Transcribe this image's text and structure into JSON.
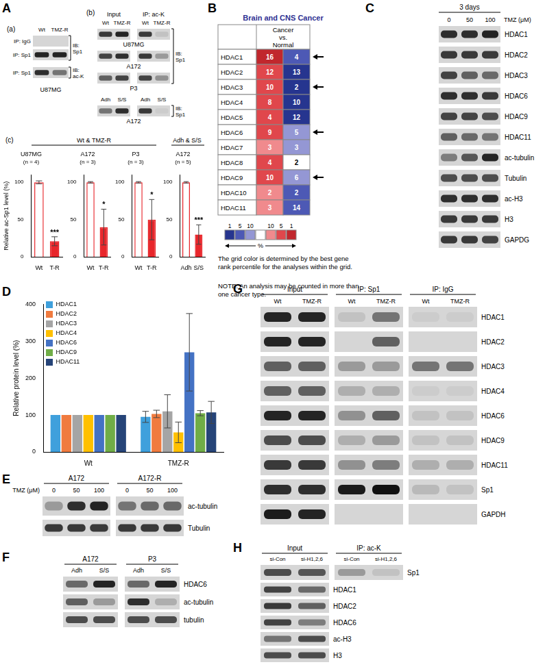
{
  "panels": {
    "A": {
      "label": "A",
      "a": {
        "label": "(a)",
        "columns": [
          "Wt",
          "TMZ-R"
        ],
        "blots": [
          {
            "rows": [
              {
                "label": "IP: IgG",
                "bands": [
                  0,
                  0
                ]
              },
              {
                "label": "IP: Sp1",
                "bands": [
                  0.9,
                  0.9
                ]
              }
            ],
            "ib": "IB:",
            "target": "Sp1"
          },
          {
            "rows": [
              {
                "label": "IP: Sp1",
                "bands": [
                  0.85,
                  0.5
                ]
              }
            ],
            "ib": "IB:",
            "target": "ac-K"
          }
        ],
        "cell_line": "U87MG"
      },
      "b": {
        "label": "(b)",
        "groups": [
          "Input",
          "IP: ac-K"
        ],
        "blots": [
          {
            "columns": [
              "Wt",
              "TMZ-R",
              "Wt",
              "TMZ-R"
            ],
            "rows": [
              {
                "label": "U87MG",
                "bands": [
                  0.8,
                  0.9,
                  0.8,
                  0.1
                ]
              },
              {
                "label": "A172",
                "bands": [
                  0.75,
                  0.85,
                  0.8,
                  0.3
                ]
              },
              {
                "label": "P3",
                "bands": [
                  0.6,
                  0.75,
                  0.75,
                  0.35
                ]
              }
            ],
            "ib": "IB:",
            "target": "Sp1"
          },
          {
            "columns": [
              "Adh",
              "S/S",
              "Adh",
              "S/S"
            ],
            "rows": [
              {
                "label": "A172",
                "bands": [
                  0.5,
                  0.85,
                  0.8,
                  0.05
                ]
              }
            ],
            "ib": "IB:",
            "target": "Sp1"
          }
        ]
      },
      "c": {
        "label": "(c)",
        "group_titles": [
          "Wt & TMZ-R",
          "Adh & S/S"
        ]
      }
    },
    "B": {
      "label": "B",
      "title": "Brain and CNS Cancer",
      "header": [
        "Cancer",
        "vs.",
        "Normal"
      ],
      "rows": [
        {
          "gene": "HDAC1",
          "cancer": {
            "value": 16,
            "color": "#c1272d"
          },
          "normal": {
            "value": 4,
            "color": "#4d59b5"
          },
          "arrow": true
        },
        {
          "gene": "HDAC2",
          "cancer": {
            "value": 12,
            "color": "#e0474c"
          },
          "normal": {
            "value": 13,
            "color": "#26358f"
          },
          "arrow": false
        },
        {
          "gene": "HDAC3",
          "cancer": {
            "value": 10,
            "color": "#e0474c"
          },
          "normal": {
            "value": 2,
            "color": "#26358f"
          },
          "arrow": true
        },
        {
          "gene": "HDAC4",
          "cancer": {
            "value": 8,
            "color": "#e0474c"
          },
          "normal": {
            "value": 10,
            "color": "#26358f"
          },
          "arrow": false
        },
        {
          "gene": "HDAC5",
          "cancer": {
            "value": 4,
            "color": "#e0474c"
          },
          "normal": {
            "value": 12,
            "color": "#26358f"
          },
          "arrow": false
        },
        {
          "gene": "HDAC6",
          "cancer": {
            "value": 9,
            "color": "#e0474c"
          },
          "normal": {
            "value": 5,
            "color": "#9497d4"
          },
          "arrow": true
        },
        {
          "gene": "HDAC7",
          "cancer": {
            "value": 3,
            "color": "#f08a8d"
          },
          "normal": {
            "value": 3,
            "color": "#9497d4"
          },
          "arrow": false
        },
        {
          "gene": "HDAC8",
          "cancer": {
            "value": 4,
            "color": "#e0474c"
          },
          "normal": {
            "value": 2,
            "color": "#ffffff"
          },
          "arrow": false
        },
        {
          "gene": "HDAC9",
          "cancer": {
            "value": 10,
            "color": "#e0474c"
          },
          "normal": {
            "value": 6,
            "color": "#9497d4"
          },
          "arrow": true
        },
        {
          "gene": "HDAC10",
          "cancer": {
            "value": 2,
            "color": "#f08a8d"
          },
          "normal": {
            "value": 2,
            "color": "#4d59b5"
          },
          "arrow": false
        },
        {
          "gene": "HDAC11",
          "cancer": {
            "value": 3,
            "color": "#f08a8d"
          },
          "normal": {
            "value": 14,
            "color": "#4d59b5"
          },
          "arrow": false
        }
      ],
      "color_scale": {
        "blue": [
          {
            "label": 1,
            "color": "#26358f"
          },
          {
            "label": 5,
            "color": "#4d59b5"
          },
          {
            "label": 10,
            "color": "#9497d4"
          }
        ],
        "neutral": "#ffffff",
        "red": [
          {
            "label": 10,
            "color": "#f08a8d"
          },
          {
            "label": 5,
            "color": "#e0474c"
          },
          {
            "label": 1,
            "color": "#c1272d"
          }
        ],
        "unit": "%"
      },
      "notes": [
        "The grid color is determined by the best gene rank percentile for the analyses within the grid.",
        "NOTE: An analysis may be counted in more than one cancer type."
      ]
    },
    "C": {
      "label": "C",
      "time": "3 days",
      "treatment": "TMZ (μM)",
      "doses": [
        0,
        50,
        100
      ],
      "rows": [
        {
          "label": "HDAC1",
          "bands": [
            0.85,
            0.85,
            0.9
          ]
        },
        {
          "label": "HDAC2",
          "bands": [
            0.8,
            0.8,
            0.8
          ]
        },
        {
          "label": "HDAC3",
          "bands": [
            0.75,
            0.6,
            0.55
          ]
        },
        {
          "label": "HDAC6",
          "bands": [
            0.85,
            0.85,
            0.8
          ]
        },
        {
          "label": "HDAC9",
          "bands": [
            0.75,
            0.75,
            0.7
          ]
        },
        {
          "label": "HDAC11",
          "bands": [
            0.6,
            0.55,
            0.5
          ]
        },
        {
          "label": "ac-tubulin",
          "bands": [
            0.45,
            0.65,
            0.9
          ]
        },
        {
          "label": "Tubulin",
          "bands": [
            0.7,
            0.7,
            0.7
          ]
        },
        {
          "label": "ac-H3",
          "bands": [
            0.85,
            0.85,
            0.85
          ]
        },
        {
          "label": "H3",
          "bands": [
            0.8,
            0.8,
            0.8
          ]
        },
        {
          "label": "GAPDG",
          "bands": [
            0.8,
            0.8,
            0.75
          ]
        }
      ]
    },
    "D": {
      "label": "D"
    },
    "E": {
      "label": "E",
      "groups": [
        "A172",
        "A172-R"
      ],
      "treatment": "TMZ (μM)",
      "doses": [
        0,
        50,
        100,
        0,
        50,
        100
      ],
      "rows": [
        {
          "label": "ac-tubulin",
          "bands": [
            0.3,
            0.85,
            0.9,
            0.5,
            0.55,
            0.55
          ]
        },
        {
          "label": "Tubulin",
          "bands": [
            0.8,
            0.8,
            0.8,
            0.8,
            0.8,
            0.8
          ]
        }
      ]
    },
    "F": {
      "label": "F",
      "groups": [
        "A172",
        "P3"
      ],
      "columns": [
        "Adh",
        "S/S",
        "Adh",
        "S/S"
      ],
      "rows": [
        {
          "label": "HDAC6",
          "bands": [
            0.55,
            0.9,
            0.55,
            0.9
          ]
        },
        {
          "label": "ac-tubulin",
          "bands": [
            0.6,
            0.3,
            0.85,
            0.2
          ]
        },
        {
          "label": "tubulin",
          "bands": [
            0.7,
            0.7,
            0.7,
            0.7
          ]
        }
      ]
    },
    "G": {
      "label": "G",
      "groups": [
        "Input",
        "IP: Sp1",
        "IP: IgG"
      ],
      "columns": [
        "Wt",
        "TMZ-R",
        "Wt",
        "TMZ-R",
        "Wt",
        "TMZ-R"
      ],
      "rows": [
        {
          "label": "HDAC1",
          "bands": [
            0.9,
            0.9,
            0.1,
            0.5,
            0.05,
            0.05
          ]
        },
        {
          "label": "HDAC2",
          "bands": [
            0.9,
            0.9,
            0,
            0.6,
            0,
            0
          ]
        },
        {
          "label": "HDAC3",
          "bands": [
            0.6,
            0.6,
            0.3,
            0.3,
            0.5,
            0.5
          ]
        },
        {
          "label": "HDAC4",
          "bands": [
            0.6,
            0.6,
            0.2,
            0.2,
            0.05,
            0.05
          ]
        },
        {
          "label": "HDAC6",
          "bands": [
            0.9,
            0.9,
            0.35,
            0.6,
            0.1,
            0.1
          ]
        },
        {
          "label": "HDAC9",
          "bands": [
            0.7,
            0.7,
            0.2,
            0.3,
            0.1,
            0.1
          ]
        },
        {
          "label": "HDAC11",
          "bands": [
            0.8,
            0.8,
            0.35,
            0.45,
            0.2,
            0.2
          ]
        },
        {
          "label": "Sp1",
          "bands": [
            0.85,
            0.85,
            0.95,
            1,
            0.15,
            0.1
          ]
        },
        {
          "label": "GAPDH",
          "bands": [
            0.95,
            0.9,
            0,
            0,
            0,
            0
          ]
        }
      ]
    },
    "H": {
      "label": "H",
      "groups": [
        "Input",
        "IP: ac-K"
      ],
      "columns": [
        "si-Con",
        "si-H1,2,6",
        "si-Con",
        "si-H1,2,6"
      ],
      "rows": [
        {
          "label": "Sp1",
          "bands": [
            0.7,
            0.65,
            0.3,
            0.1
          ]
        },
        {
          "label": "HDAC1",
          "bands": [
            0.75,
            0.55
          ]
        },
        {
          "label": "HDAC2",
          "bands": [
            0.8,
            0.6
          ]
        },
        {
          "label": "HDAC6",
          "bands": [
            0.75,
            0.45
          ]
        },
        {
          "label": "ac-H3",
          "bands": [
            0.5,
            0.7
          ]
        },
        {
          "label": "H3",
          "bands": [
            0.7,
            0.7
          ]
        }
      ]
    }
  },
  "chart_data": [
    {
      "type": "bar",
      "title": "U87MG",
      "subtitle": "(n = 4)",
      "categories": [
        "Wt",
        "T-R"
      ],
      "values": [
        100,
        21
      ],
      "errors": [
        2,
        6
      ],
      "annotations": [
        null,
        "***"
      ],
      "colors": [
        "#ffffff",
        "#e8262b"
      ],
      "color": "#e8262b",
      "y_label": "Relative ac-Sp1 level (%)",
      "ylim": [
        0,
        110
      ],
      "yticks": [
        0,
        50,
        100
      ],
      "grid": false
    },
    {
      "type": "bar",
      "title": "A172",
      "subtitle": "(n = 3)",
      "categories": [
        "Wt",
        "T-R"
      ],
      "values": [
        100,
        40
      ],
      "errors": [
        1,
        24
      ],
      "annotations": [
        null,
        "*"
      ],
      "colors": [
        "#ffffff",
        "#e8262b"
      ],
      "color": "#e8262b",
      "ylim": [
        0,
        110
      ],
      "yticks": [
        0,
        50,
        100
      ],
      "grid": false
    },
    {
      "type": "bar",
      "title": "P3",
      "subtitle": "(n = 3)",
      "categories": [
        "Wt",
        "T-R"
      ],
      "values": [
        100,
        50
      ],
      "errors": [
        1,
        27
      ],
      "annotations": [
        null,
        "*"
      ],
      "colors": [
        "#ffffff",
        "#e8262b"
      ],
      "color": "#e8262b",
      "ylim": [
        0,
        110
      ],
      "yticks": [
        0,
        50,
        100
      ],
      "grid": false
    },
    {
      "type": "bar",
      "title": "A172",
      "subtitle": "(n = 5)",
      "categories": [
        "Adh",
        "S/S"
      ],
      "values": [
        100,
        30
      ],
      "errors": [
        1,
        13
      ],
      "annotations": [
        null,
        "***"
      ],
      "colors": [
        "#ffffff",
        "#e8262b"
      ],
      "color": "#e8262b",
      "ylim": [
        0,
        110
      ],
      "yticks": [
        0,
        50,
        100
      ],
      "grid": false
    },
    {
      "type": "bar",
      "categories": [
        "Wt",
        "TMZ-R"
      ],
      "series": [
        {
          "name": "HDAC1",
          "color": "#3fa0dc",
          "values": [
            100,
            95
          ],
          "errors": [
            null,
            15
          ]
        },
        {
          "name": "HDAC2",
          "color": "#f07b3f",
          "values": [
            100,
            103
          ],
          "errors": [
            null,
            10
          ]
        },
        {
          "name": "HDAC3",
          "color": "#a5a5a5",
          "values": [
            100,
            110
          ],
          "errors": [
            null,
            45
          ]
        },
        {
          "name": "HDAC4",
          "color": "#ffc000",
          "values": [
            100,
            53
          ],
          "errors": [
            null,
            28
          ]
        },
        {
          "name": "HDAC6",
          "color": "#4472c4",
          "values": [
            100,
            270
          ],
          "errors": [
            null,
            105
          ]
        },
        {
          "name": "HDAC9",
          "color": "#70ad47",
          "values": [
            100,
            105
          ],
          "errors": [
            null,
            7
          ]
        },
        {
          "name": "HDAC11",
          "color": "#264478",
          "values": [
            100,
            107
          ],
          "errors": [
            null,
            30
          ]
        }
      ],
      "y_label": "Relative protein level (%)",
      "ylim": [
        0,
        400
      ],
      "yticks": [
        0,
        100,
        200,
        300,
        400
      ],
      "legend": "top-left",
      "grid": false
    }
  ]
}
